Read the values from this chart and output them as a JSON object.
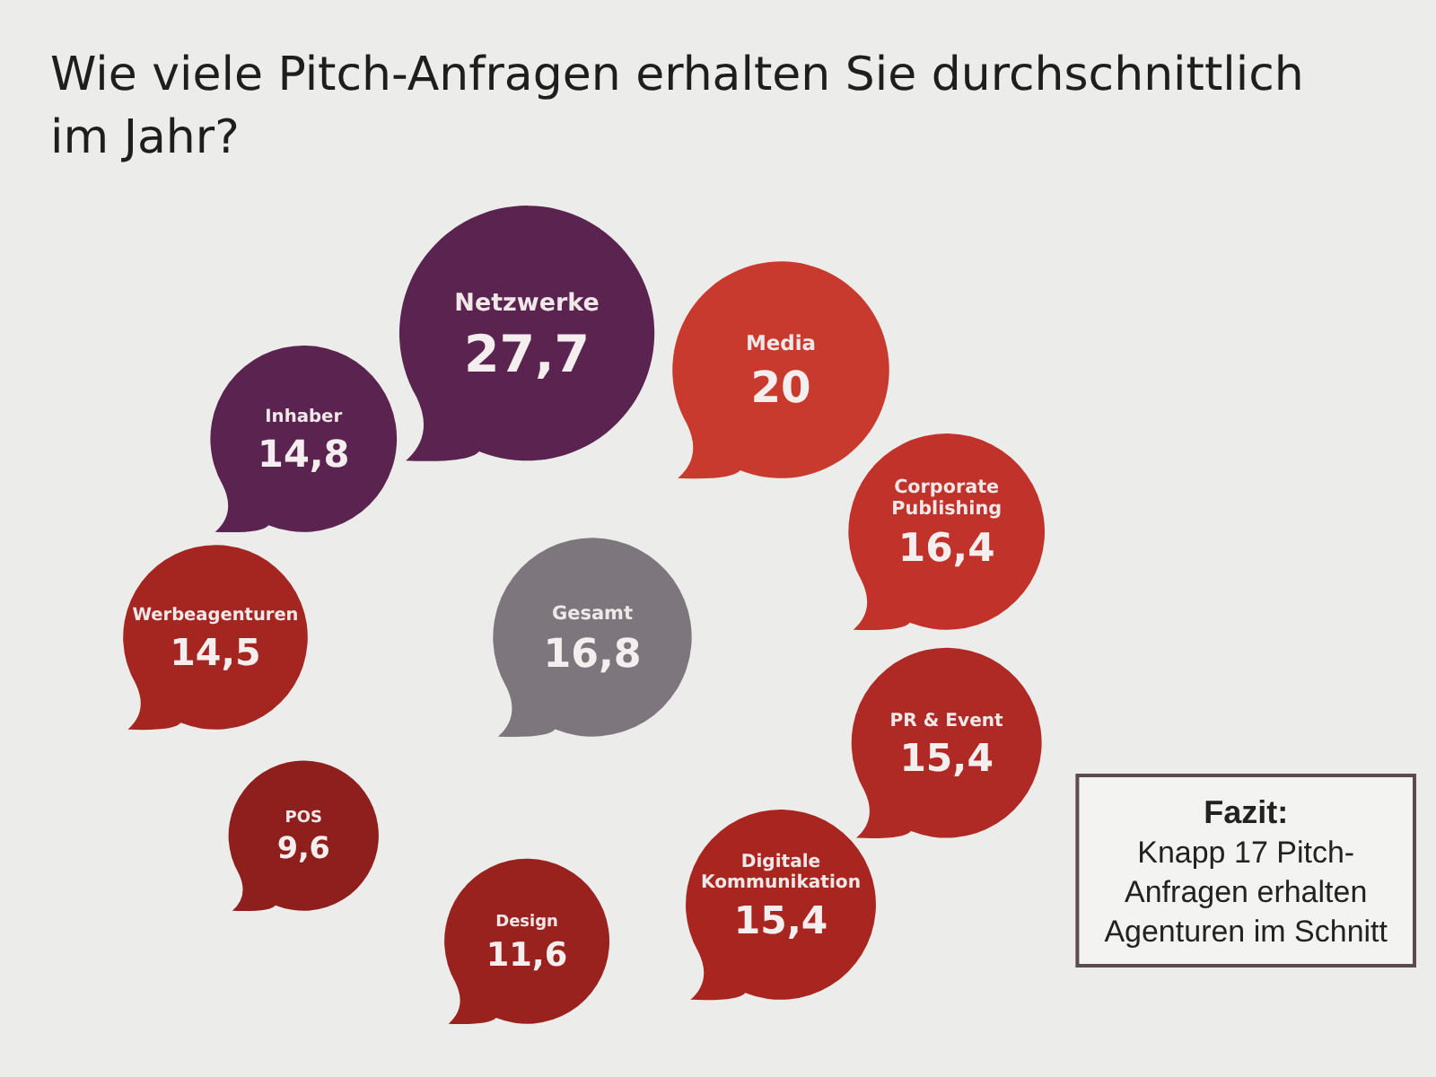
{
  "chart_data": {
    "type": "other",
    "title": "Wie viele Pitch-Anfragen erhalten Sie durchschnittlich im Jahr?",
    "categories": [
      "Gesamt",
      "Netzwerke",
      "Media",
      "Corporate Publishing",
      "PR & Event",
      "Digitale Kommunikation",
      "Design",
      "POS",
      "Werbeagenturen",
      "Inhaber"
    ],
    "values": [
      16.8,
      27.7,
      20,
      16.4,
      15.4,
      15.4,
      11.6,
      9.6,
      14.5,
      14.8
    ],
    "value_labels": [
      "16,8",
      "27,7",
      "20",
      "16,4",
      "15,4",
      "15,4",
      "11,6",
      "9,6",
      "14,5",
      "14,8"
    ],
    "colors": [
      "#7d777d",
      "#5a2350",
      "#c93a2e",
      "#c0322a",
      "#b02a25",
      "#a8261f",
      "#9a221e",
      "#8e1f1c",
      "#a52520",
      "#5a2350"
    ],
    "annotations": [
      "Fazit:",
      "Knapp 17 Pitch-Anfragen erhalten Agenturen im Schnitt"
    ]
  }
}
